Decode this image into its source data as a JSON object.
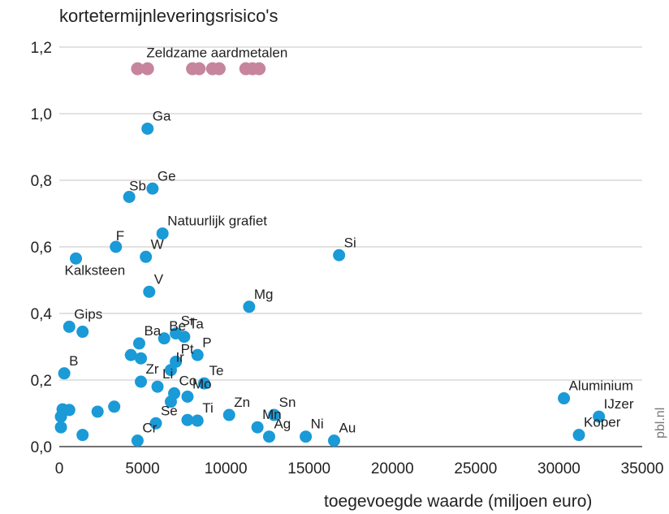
{
  "chart_data": {
    "type": "scatter",
    "title": "kortetermijnleveringsrisico's",
    "xlabel": "toegevoegde waarde (miljoen euro)",
    "ylabel": "",
    "xlim": [
      0,
      35000
    ],
    "ylim": [
      0,
      1.2
    ],
    "x_ticks": [
      0,
      5000,
      10000,
      15000,
      20000,
      25000,
      30000,
      35000
    ],
    "x_tick_labels": [
      "0",
      "5000",
      "10000",
      "15000",
      "20000",
      "25000",
      "30000",
      "35000"
    ],
    "y_ticks": [
      0,
      0.2,
      0.4,
      0.6,
      0.8,
      1.0,
      1.2
    ],
    "y_tick_labels": [
      "0,0",
      "0,2",
      "0,4",
      "0,6",
      "0,8",
      "1,0",
      "1,2"
    ],
    "grid": "horizontal",
    "point_color": "#1a9ad7",
    "rare_earth_color": "#c7849d",
    "points": [
      {
        "x": 5300,
        "y": 0.955,
        "label": "Ga"
      },
      {
        "x": 5600,
        "y": 0.775,
        "label": "Ge"
      },
      {
        "x": 4200,
        "y": 0.75,
        "label": "Sb"
      },
      {
        "x": 6200,
        "y": 0.64,
        "label": "Natuurlijk grafiet"
      },
      {
        "x": 3400,
        "y": 0.6,
        "label": "F"
      },
      {
        "x": 5200,
        "y": 0.57,
        "label": "W"
      },
      {
        "x": 1000,
        "y": 0.565,
        "label": "Kalksteen"
      },
      {
        "x": 16800,
        "y": 0.575,
        "label": "Si"
      },
      {
        "x": 5400,
        "y": 0.465,
        "label": "V"
      },
      {
        "x": 11400,
        "y": 0.42,
        "label": "Mg"
      },
      {
        "x": 600,
        "y": 0.36,
        "label": "Gips"
      },
      {
        "x": 1400,
        "y": 0.345,
        "label": ""
      },
      {
        "x": 7000,
        "y": 0.34,
        "label": "Sr"
      },
      {
        "x": 7500,
        "y": 0.33,
        "label": "Ta"
      },
      {
        "x": 6300,
        "y": 0.325,
        "label": "Be"
      },
      {
        "x": 4800,
        "y": 0.31,
        "label": "Ba"
      },
      {
        "x": 8300,
        "y": 0.275,
        "label": "P"
      },
      {
        "x": 4300,
        "y": 0.275,
        "label": ""
      },
      {
        "x": 4900,
        "y": 0.265,
        "label": ""
      },
      {
        "x": 7000,
        "y": 0.255,
        "label": "Pt"
      },
      {
        "x": 6700,
        "y": 0.23,
        "label": "Ir"
      },
      {
        "x": 300,
        "y": 0.22,
        "label": "B"
      },
      {
        "x": 4900,
        "y": 0.195,
        "label": "Zr"
      },
      {
        "x": 5900,
        "y": 0.18,
        "label": "Li"
      },
      {
        "x": 8700,
        "y": 0.19,
        "label": "Te"
      },
      {
        "x": 6900,
        "y": 0.16,
        "label": "Co"
      },
      {
        "x": 7700,
        "y": 0.15,
        "label": "Mo"
      },
      {
        "x": 6700,
        "y": 0.135,
        "label": ""
      },
      {
        "x": 3300,
        "y": 0.12,
        "label": ""
      },
      {
        "x": 200,
        "y": 0.112,
        "label": ""
      },
      {
        "x": 600,
        "y": 0.11,
        "label": ""
      },
      {
        "x": 2300,
        "y": 0.105,
        "label": ""
      },
      {
        "x": 100,
        "y": 0.09,
        "label": ""
      },
      {
        "x": 10200,
        "y": 0.095,
        "label": "Zn"
      },
      {
        "x": 12900,
        "y": 0.095,
        "label": "Sn"
      },
      {
        "x": 7700,
        "y": 0.08,
        "label": ""
      },
      {
        "x": 8300,
        "y": 0.078,
        "label": "Ti"
      },
      {
        "x": 5800,
        "y": 0.07,
        "label": "Se"
      },
      {
        "x": 100,
        "y": 0.058,
        "label": ""
      },
      {
        "x": 11900,
        "y": 0.058,
        "label": "Mn"
      },
      {
        "x": 1400,
        "y": 0.035,
        "label": ""
      },
      {
        "x": 12600,
        "y": 0.03,
        "label": "Ag"
      },
      {
        "x": 14800,
        "y": 0.03,
        "label": "Ni"
      },
      {
        "x": 4700,
        "y": 0.018,
        "label": "Cr"
      },
      {
        "x": 16500,
        "y": 0.018,
        "label": "Au"
      },
      {
        "x": 30300,
        "y": 0.145,
        "label": "Aluminium"
      },
      {
        "x": 32400,
        "y": 0.09,
        "label": "IJzer"
      },
      {
        "x": 31200,
        "y": 0.035,
        "label": "Koper"
      }
    ],
    "rare_earths": {
      "label": "Zeldzame aardmetalen",
      "y": 1.135,
      "x": [
        4700,
        5300,
        8000,
        8400,
        9200,
        9600,
        11200,
        11600,
        12000
      ]
    },
    "watermark": "pbl.nl"
  }
}
